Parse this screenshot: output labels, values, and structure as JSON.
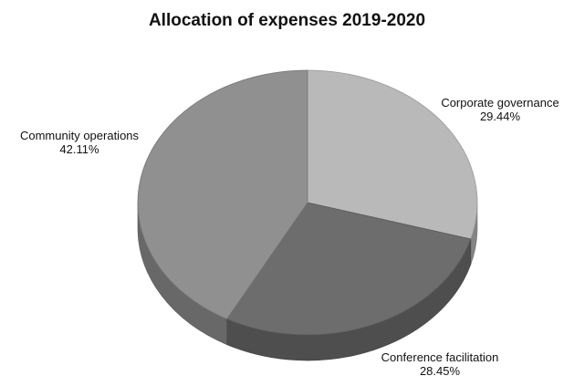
{
  "chart_data": {
    "type": "pie",
    "title": "Allocation of expenses 2019-2020",
    "slices": [
      {
        "label": "Corporate governance",
        "value": 29.44,
        "value_label": "29.44%",
        "color": "#b9b9b9"
      },
      {
        "label": "Conference facilitation",
        "value": 28.45,
        "value_label": "28.45%",
        "color": "#6d6d6d"
      },
      {
        "label": "Community operations",
        "value": 42.11,
        "value_label": "42.11%",
        "color": "#909090"
      }
    ],
    "legend": "none"
  }
}
